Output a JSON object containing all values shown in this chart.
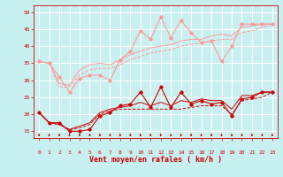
{
  "title": "",
  "xlabel": "Vent moyen/en rafales ( km/h )",
  "ylabel": "",
  "xlim": [
    -0.5,
    23.5
  ],
  "ylim": [
    13,
    52
  ],
  "yticks": [
    15,
    20,
    25,
    30,
    35,
    40,
    45,
    50
  ],
  "xticks": [
    0,
    1,
    2,
    3,
    4,
    5,
    6,
    7,
    8,
    9,
    10,
    11,
    12,
    13,
    14,
    15,
    16,
    17,
    18,
    19,
    20,
    21,
    22,
    23
  ],
  "background_color": "#c8f0f0",
  "grid_color": "#ffffff",
  "series": [
    {
      "x": [
        0,
        1,
        2,
        3,
        4,
        5,
        6,
        7,
        8,
        9,
        10,
        11,
        12,
        13,
        14,
        15,
        16,
        17,
        18,
        19,
        20,
        21,
        22,
        23
      ],
      "y": [
        20.5,
        17.5,
        17.5,
        15.0,
        15.0,
        15.5,
        19.5,
        20.5,
        22.5,
        23.0,
        26.5,
        22.0,
        28.0,
        22.0,
        26.5,
        23.0,
        24.0,
        23.0,
        23.5,
        19.5,
        24.5,
        25.0,
        26.5,
        26.5
      ],
      "color": "#cc0000",
      "linewidth": 0.8,
      "marker": "D",
      "markersize": 1.8,
      "zorder": 5,
      "linestyle": "-"
    },
    {
      "x": [
        0,
        1,
        2,
        3,
        4,
        5,
        6,
        7,
        8,
        9,
        10,
        11,
        12,
        13,
        14,
        15,
        16,
        17,
        18,
        19,
        20,
        21,
        22,
        23
      ],
      "y": [
        20.5,
        17.5,
        17.0,
        15.5,
        16.0,
        17.0,
        20.0,
        21.0,
        21.5,
        21.5,
        21.5,
        21.5,
        21.5,
        21.5,
        21.5,
        22.0,
        22.5,
        22.5,
        22.5,
        20.0,
        24.0,
        24.5,
        25.0,
        26.5
      ],
      "color": "#cc0000",
      "linewidth": 0.7,
      "marker": null,
      "markersize": 0,
      "zorder": 3,
      "linestyle": "--"
    },
    {
      "x": [
        0,
        1,
        2,
        3,
        4,
        5,
        6,
        7,
        8,
        9,
        10,
        11,
        12,
        13,
        14,
        15,
        16,
        17,
        18,
        19,
        20,
        21,
        22,
        23
      ],
      "y": [
        20.5,
        17.5,
        17.0,
        15.5,
        16.5,
        17.5,
        20.5,
        21.5,
        22.0,
        22.5,
        23.5,
        22.5,
        23.5,
        22.5,
        24.0,
        23.5,
        24.5,
        24.0,
        24.0,
        21.5,
        25.5,
        25.5,
        26.5,
        26.5
      ],
      "color": "#cc0000",
      "linewidth": 0.7,
      "marker": null,
      "markersize": 0,
      "zorder": 3,
      "linestyle": "-"
    },
    {
      "x": [
        0,
        1,
        2,
        3,
        4,
        5,
        6,
        7,
        8,
        9,
        10,
        11,
        12,
        13,
        14,
        15,
        16,
        17,
        18,
        19,
        20,
        21,
        22,
        23
      ],
      "y": [
        35.5,
        35.0,
        31.0,
        26.5,
        30.5,
        31.5,
        31.5,
        30.0,
        36.0,
        38.5,
        44.5,
        42.0,
        48.5,
        42.5,
        47.5,
        44.0,
        41.0,
        41.5,
        35.5,
        40.0,
        46.5,
        46.5,
        46.5,
        46.5
      ],
      "color": "#ff9999",
      "linewidth": 0.8,
      "marker": "D",
      "markersize": 1.8,
      "zorder": 5,
      "linestyle": "-"
    },
    {
      "x": [
        0,
        1,
        2,
        3,
        4,
        5,
        6,
        7,
        8,
        9,
        10,
        11,
        12,
        13,
        14,
        15,
        16,
        17,
        18,
        19,
        20,
        21,
        22,
        23
      ],
      "y": [
        35.5,
        35.0,
        29.0,
        28.5,
        33.0,
        34.5,
        35.0,
        34.5,
        36.0,
        37.5,
        38.5,
        39.5,
        40.0,
        40.5,
        41.5,
        42.0,
        42.0,
        43.0,
        43.5,
        43.0,
        45.5,
        46.0,
        46.5,
        46.5
      ],
      "color": "#ff9999",
      "linewidth": 0.7,
      "marker": null,
      "markersize": 0,
      "zorder": 3,
      "linestyle": "-"
    },
    {
      "x": [
        0,
        1,
        2,
        3,
        4,
        5,
        6,
        7,
        8,
        9,
        10,
        11,
        12,
        13,
        14,
        15,
        16,
        17,
        18,
        19,
        20,
        21,
        22,
        23
      ],
      "y": [
        35.5,
        35.0,
        28.0,
        28.0,
        31.5,
        33.0,
        33.5,
        33.5,
        34.5,
        36.0,
        37.0,
        38.0,
        38.5,
        39.0,
        40.0,
        40.5,
        41.0,
        41.5,
        42.0,
        42.0,
        44.0,
        44.5,
        45.5,
        46.5
      ],
      "color": "#ff9999",
      "linewidth": 0.7,
      "marker": null,
      "markersize": 0,
      "zorder": 3,
      "linestyle": "--"
    }
  ],
  "arrow_color": "#cc0000",
  "xlabel_color": "#cc0000",
  "xlabel_fontsize": 6.0,
  "tick_fontsize": 4.5
}
